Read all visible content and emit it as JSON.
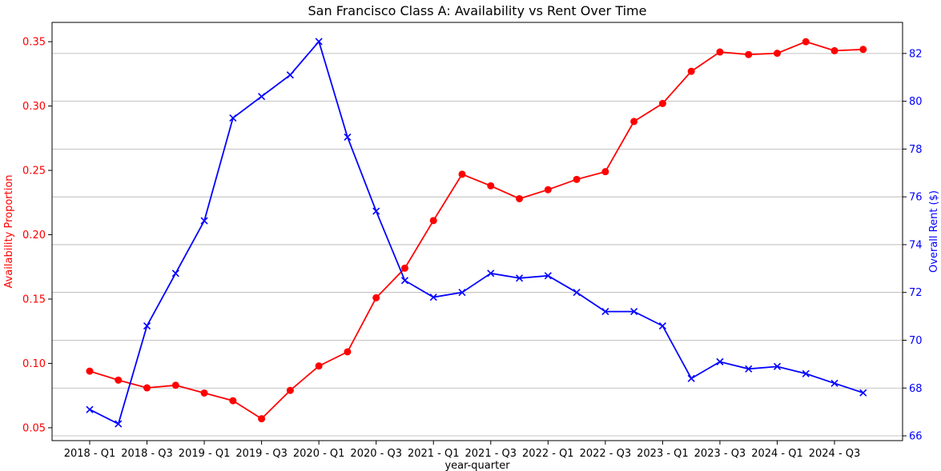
{
  "chart_data": {
    "type": "line",
    "title": "San Francisco Class A: Availability vs Rent Over Time",
    "xlabel": "year-quarter",
    "ylabel_left": "Availability Proportion",
    "ylabel_right": "Overall Rent ($)",
    "categories": [
      "2018 - Q1",
      "2018 - Q2",
      "2018 - Q3",
      "2018 - Q4",
      "2019 - Q1",
      "2019 - Q2",
      "2019 - Q3",
      "2019 - Q4",
      "2020 - Q1",
      "2020 - Q2",
      "2020 - Q3",
      "2020 - Q4",
      "2021 - Q1",
      "2021 - Q2",
      "2021 - Q3",
      "2021 - Q4",
      "2022 - Q1",
      "2022 - Q2",
      "2022 - Q3",
      "2022 - Q4",
      "2023 - Q1",
      "2023 - Q2",
      "2023 - Q3",
      "2023 - Q4",
      "2024 - Q1",
      "2024 - Q2",
      "2024 - Q3",
      "2024 - Q4"
    ],
    "x_tick_labels": [
      "2018 - Q1",
      "2018 - Q3",
      "2019 - Q1",
      "2019 - Q3",
      "2020 - Q1",
      "2020 - Q3",
      "2021 - Q1",
      "2021 - Q3",
      "2022 - Q1",
      "2022 - Q3",
      "2023 - Q1",
      "2023 - Q3",
      "2024 - Q1",
      "2024 - Q3"
    ],
    "series": [
      {
        "axis": "left",
        "color": "#ff0000",
        "marker": "circle",
        "values": [
          0.094,
          0.087,
          0.081,
          0.083,
          0.077,
          0.071,
          0.057,
          0.079,
          0.098,
          0.109,
          0.151,
          0.174,
          0.211,
          0.247,
          0.238,
          0.228,
          0.235,
          0.243,
          0.249,
          0.288,
          0.302,
          0.327,
          0.342,
          0.34,
          0.341,
          0.35,
          0.343,
          0.344
        ]
      },
      {
        "axis": "right",
        "color": "#0000ff",
        "marker": "x",
        "values": [
          67.1,
          66.5,
          70.6,
          72.8,
          75.0,
          79.3,
          80.2,
          81.1,
          82.5,
          78.5,
          75.4,
          72.5,
          71.8,
          72.0,
          72.8,
          72.6,
          72.7,
          72.0,
          71.2,
          71.2,
          70.6,
          68.4,
          69.1,
          68.8,
          68.9,
          68.6,
          68.2,
          67.8
        ]
      }
    ],
    "y_left": {
      "min": 0.04,
      "max": 0.365,
      "ticks": [
        0.05,
        0.1,
        0.15,
        0.2,
        0.25,
        0.3,
        0.35
      ],
      "tick_labels": [
        "0.05",
        "0.10",
        "0.15",
        "0.20",
        "0.25",
        "0.30",
        "0.35"
      ],
      "color": "#ff0000"
    },
    "y_right": {
      "min": 65.8,
      "max": 83.3,
      "ticks": [
        66,
        68,
        70,
        72,
        74,
        76,
        78,
        80,
        82
      ],
      "tick_labels": [
        "66",
        "68",
        "70",
        "72",
        "74",
        "76",
        "78",
        "80",
        "82"
      ],
      "color": "#0000ff"
    },
    "grid": "horizontal-right-axis"
  }
}
